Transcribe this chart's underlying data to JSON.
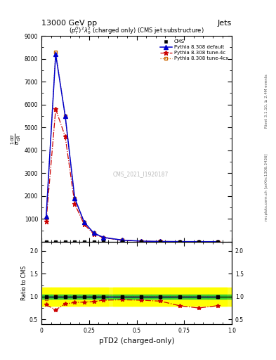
{
  "title_top": "13000 GeV pp",
  "title_right": "Jets",
  "subtitle": "$(p_T^D)^2\\lambda_0^2$ (charged only) (CMS jet substructure)",
  "xlabel": "pTD2 (charged-only)",
  "ylabel_ratio": "Ratio to CMS",
  "watermark": "CMS_2021_I1920187",
  "rivet_label": "Rivet 3.1.10, ≥ 2.4M events",
  "mcplots_label": "mcplots.cern.ch [arXiv:1306.3436]",
  "legend_entries": [
    "CMS",
    "Pythia 8.308 default",
    "Pythia 8.308 tune-4c",
    "Pythia 8.308 tune-4cx"
  ],
  "x_data": [
    0.025,
    0.075,
    0.125,
    0.175,
    0.225,
    0.275,
    0.325,
    0.425,
    0.525,
    0.625,
    0.725,
    0.825,
    0.925
  ],
  "cms_y": [
    0.5,
    0.5,
    0.5,
    0.5,
    0.5,
    0.5,
    0.5,
    0.5,
    0.5,
    0.5,
    0.5,
    0.5,
    0.5
  ],
  "default_y": [
    1100,
    8200,
    5500,
    1900,
    850,
    380,
    190,
    70,
    25,
    10,
    5,
    2,
    1
  ],
  "tune4c_y": [
    900,
    5800,
    4600,
    1650,
    750,
    340,
    175,
    65,
    23,
    9,
    4,
    1.5,
    0.8
  ],
  "tune4cx_y": [
    1050,
    8300,
    5500,
    1900,
    850,
    380,
    190,
    70,
    25,
    10,
    5,
    2,
    1
  ],
  "cms_xerr": [
    0.025,
    0.025,
    0.025,
    0.025,
    0.025,
    0.025,
    0.025,
    0.05,
    0.05,
    0.05,
    0.05,
    0.05,
    0.05
  ],
  "xlim": [
    0.0,
    1.0
  ],
  "ylim_main": [
    0,
    9000
  ],
  "ylim_ratio": [
    0.4,
    2.2
  ],
  "yticks_main": [
    0,
    1000,
    2000,
    3000,
    4000,
    5000,
    6000,
    7000,
    8000,
    9000
  ],
  "yticks_ratio": [
    0.5,
    1.0,
    1.5,
    2.0
  ],
  "xticks": [
    0,
    0.25,
    0.5,
    0.75,
    1.0
  ],
  "color_cms": "#000000",
  "color_default": "#0000cc",
  "color_tune4c": "#cc0000",
  "color_tune4cx": "#cc6600",
  "bg_color": "#ffffff",
  "ratio_green_band": 0.05,
  "ratio_yellow_band": 0.2,
  "ratio_default": [
    1.0,
    1.0,
    1.0,
    1.0,
    1.0,
    1.0,
    1.0,
    1.0,
    1.0,
    1.0,
    1.0,
    1.0,
    1.0
  ],
  "ratio_tune4c": [
    0.82,
    0.71,
    0.84,
    0.87,
    0.88,
    0.89,
    0.92,
    0.93,
    0.92,
    0.9,
    0.8,
    0.75,
    0.8
  ],
  "ratio_tune4cx": [
    0.95,
    1.01,
    1.0,
    1.0,
    1.0,
    1.0,
    1.0,
    1.0,
    1.0,
    1.0,
    1.0,
    1.0,
    1.0
  ]
}
